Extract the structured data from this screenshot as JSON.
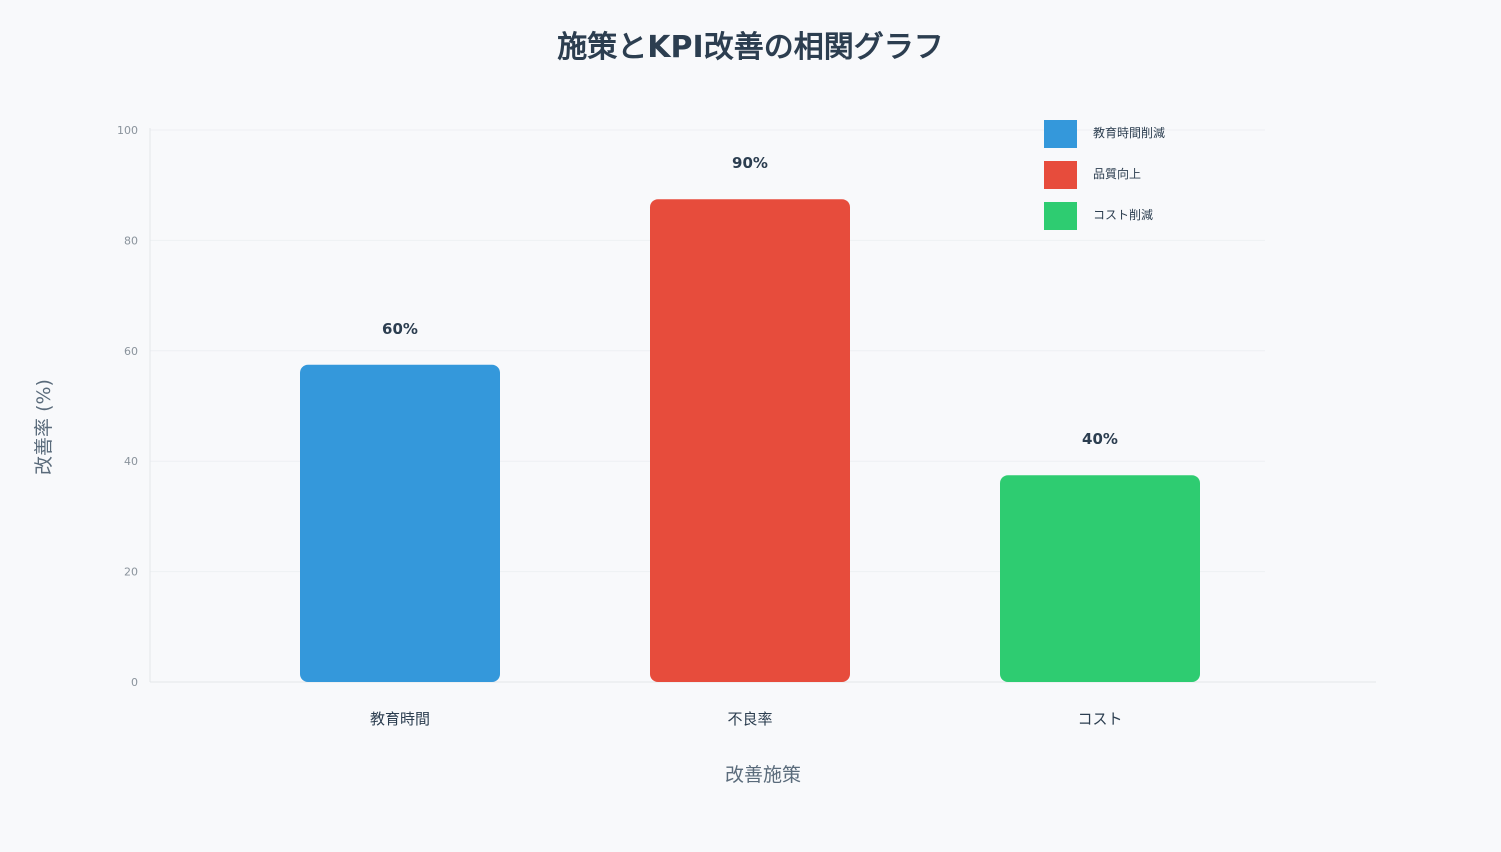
{
  "chart_data": {
    "type": "bar",
    "title": "施策とKPI改善の相関グラフ",
    "xlabel": "改善施策",
    "ylabel": "改善率 (%)",
    "categories": [
      "教育時間",
      "不良率",
      "コスト"
    ],
    "values": [
      60,
      90,
      40
    ],
    "value_labels": [
      "60%",
      "90%",
      "40%"
    ],
    "colors": [
      "#3498db",
      "#e74c3c",
      "#2ecc71"
    ],
    "ylim": [
      0,
      100
    ],
    "yticks": [
      0,
      20,
      40,
      60,
      80,
      100
    ],
    "legend": {
      "position": "top-right",
      "entries": [
        "教育時間削減",
        "品質向上",
        "コスト削減"
      ]
    },
    "grid": true
  }
}
